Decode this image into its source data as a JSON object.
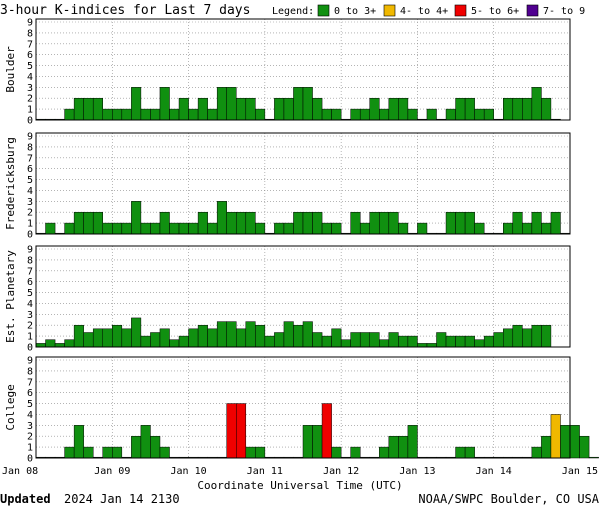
{
  "chart_data": {
    "type": "bar",
    "title": "3-hour K-indices for Last 7 days",
    "legend": {
      "label": "Legend:",
      "placement": "top-right",
      "entries": [
        {
          "label": "0 to 3+",
          "color": "#109010"
        },
        {
          "label": "4- to 4+",
          "color": "#f0b800"
        },
        {
          "label": "5- to 6+",
          "color": "#f00000"
        },
        {
          "label": "7- to 9",
          "color": "#500090"
        }
      ]
    },
    "xlabel": "Coordinate Universal Time (UTC)",
    "x_ticks": [
      "Jan 08",
      "Jan 09",
      "Jan 10",
      "Jan 11",
      "Jan 12",
      "Jan 13",
      "Jan 14",
      "Jan 15"
    ],
    "ylim": [
      0,
      9
    ],
    "y_ticks": [
      "0",
      "1",
      "2",
      "3",
      "4",
      "5",
      "6",
      "7",
      "8",
      "9"
    ],
    "grid": true,
    "interval_hours": 3,
    "panels": [
      {
        "name": "Boulder",
        "values": [
          0,
          0,
          0,
          1,
          2,
          2,
          2,
          1,
          1,
          1,
          3,
          1,
          1,
          3,
          1,
          2,
          1,
          2,
          1,
          3,
          3,
          2,
          2,
          1,
          0,
          2,
          2,
          3,
          3,
          2,
          1,
          1,
          0,
          1,
          1,
          2,
          1,
          2,
          2,
          1,
          0,
          1,
          0,
          1,
          2,
          2,
          1,
          1,
          0,
          2,
          2,
          2,
          3,
          2,
          0
        ]
      },
      {
        "name": "Fredericksburg",
        "values": [
          0,
          1,
          0,
          1,
          2,
          2,
          2,
          1,
          1,
          1,
          3,
          1,
          1,
          2,
          1,
          1,
          1,
          2,
          1,
          3,
          2,
          2,
          2,
          1,
          0,
          1,
          1,
          2,
          2,
          2,
          1,
          1,
          0,
          2,
          1,
          2,
          2,
          2,
          1,
          0,
          1,
          0,
          0,
          2,
          2,
          2,
          1,
          0,
          0,
          1,
          2,
          1,
          2,
          1,
          2,
          0
        ]
      },
      {
        "name": "Est. Planetary",
        "values": [
          0.33,
          0.67,
          0.33,
          0.67,
          2,
          1.33,
          1.67,
          1.67,
          2,
          1.67,
          2.67,
          1,
          1.33,
          1.67,
          0.67,
          1,
          1.67,
          2,
          1.67,
          2.33,
          2.33,
          1.67,
          2.33,
          2,
          1,
          1.33,
          2.33,
          2,
          2.33,
          1.33,
          1,
          1.67,
          0.67,
          1.33,
          1.33,
          1.33,
          0.67,
          1.33,
          1,
          1,
          0.33,
          0.33,
          1.33,
          1,
          1,
          1,
          0.67,
          1,
          1.33,
          1.67,
          2,
          1.67,
          2,
          2
        ]
      },
      {
        "name": "College",
        "values": [
          0,
          0,
          0,
          1,
          3,
          1,
          0,
          1,
          1,
          0,
          2,
          3,
          2,
          1,
          0,
          0,
          0,
          0,
          0,
          0,
          5,
          5,
          1,
          1,
          0,
          0,
          0,
          0,
          3,
          3,
          5,
          1,
          0,
          1,
          0,
          0,
          1,
          2,
          2,
          3,
          0,
          0,
          0,
          0,
          1,
          1,
          0,
          0,
          0,
          0,
          0,
          0,
          1,
          2,
          4,
          3,
          3,
          2,
          0
        ]
      }
    ]
  },
  "footer": {
    "updated_label": "Updated",
    "updated_value": "2024 Jan 14 2130",
    "credit": "NOAA/SWPC Boulder, CO USA"
  }
}
